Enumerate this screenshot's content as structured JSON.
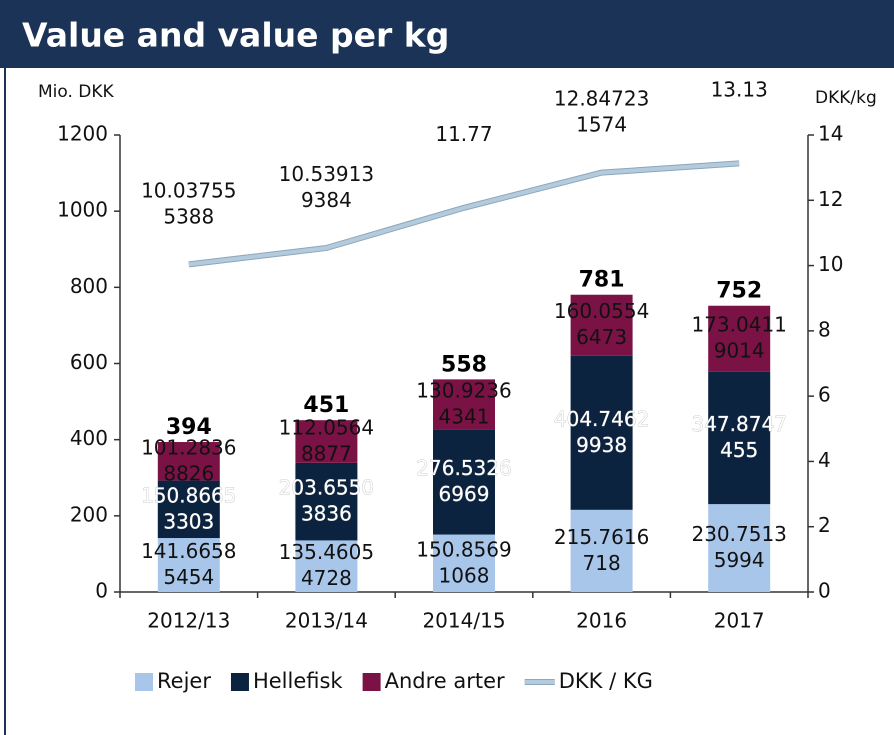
{
  "chart_data": {
    "type": "bar",
    "stacked": true,
    "title": "Value and value per kg",
    "ylabel": "Mio. DKK",
    "y2label": "DKK/kg",
    "categories": [
      "2012/13",
      "2013/14",
      "2014/15",
      "2016",
      "2017"
    ],
    "series": [
      {
        "name": "Rejer",
        "color": "#a8c6ea",
        "label_color": "#111111",
        "values": [
          141.66585454,
          135.46054728,
          150.85691068,
          215.7616718,
          230.75135994
        ]
      },
      {
        "name": "Hellefisk",
        "color": "#0c2340",
        "label_color": "#ffffff",
        "values": [
          150.86653303,
          203.65503836,
          276.53266969,
          404.74629938,
          347.8747455
        ]
      },
      {
        "name": "Andre arter",
        "color": "#7b1245",
        "label_color": "#111111",
        "values": [
          101.28368826,
          112.05648877,
          130.92364341,
          160.05546473,
          173.04119014
        ]
      },
      {
        "name": "DKK / KG",
        "type": "line",
        "axis": "y2",
        "color": "#b3cbdc",
        "values": [
          10.037555388,
          10.539139384,
          11.77,
          12.847231574,
          13.13
        ]
      }
    ],
    "totals": [
      394,
      451,
      558,
      781,
      752
    ],
    "ylim": [
      0,
      1200
    ],
    "yticks": [
      0,
      200,
      400,
      600,
      800,
      1000,
      1200
    ],
    "y2lim": [
      0,
      14
    ],
    "y2ticks": [
      0,
      2,
      4,
      6,
      8,
      10,
      12,
      14
    ],
    "legend": "bottom"
  }
}
